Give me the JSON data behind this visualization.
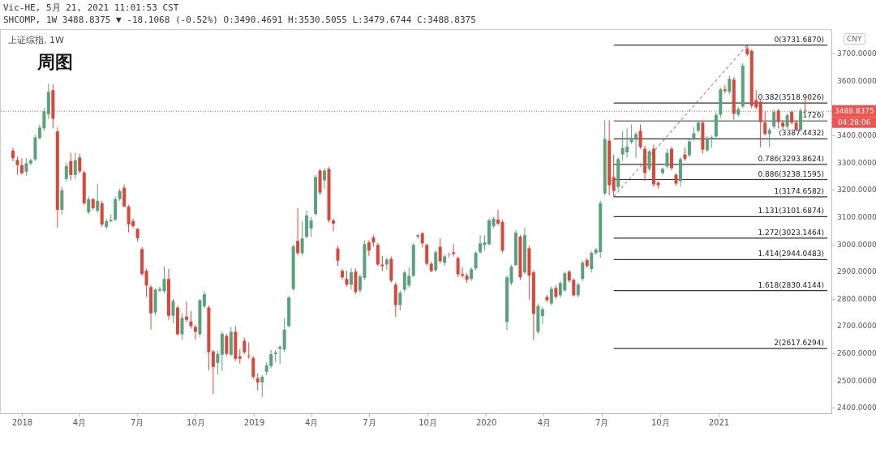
{
  "chart_data": {
    "type": "candlestick",
    "title": "周图",
    "subtitle": "上证综指, 1W",
    "annotations": [
      "Vic-HE, 5月 21, 2021 11:01:53 CST",
      "SHCOMP, 1W 3488.8375 ▼ -18.1068 (-0.52%) O:3490.4691 H:3530.5055 L:3479.6744 C:3488.8375",
      "CNY",
      "04:28:06"
    ],
    "colors": [
      "#d9473b",
      "#d9473b",
      "#d9473b",
      "#5aa17f",
      "#5aa17f",
      "#5aa17f",
      "#5aa17f",
      "#5aa17f",
      "#5aa17f",
      "#d9473b",
      "#d9473b",
      "#5aa17f",
      "#5aa17f",
      "#d9473b",
      "#5aa17f",
      "#d9473b",
      "#d9473b",
      "#5aa17f",
      "#d9473b",
      "#5aa17f",
      "#d9473b",
      "#5aa17f",
      "#5aa17f",
      "#5aa17f",
      "#5aa17f",
      "#d9473b",
      "#d9473b",
      "#d9473b",
      "#d9473b",
      "#d9473b",
      "#d9473b",
      "#d9473b",
      "#5aa17f",
      "#5aa17f",
      "#5aa17f",
      "#d9473b",
      "#5aa17f",
      "#d9473b",
      "#5aa17f",
      "#d9473b",
      "#d9473b",
      "#d9473b",
      "#5aa17f",
      "#5aa17f",
      "#d9473b",
      "#d9473b",
      "#5aa17f",
      "#5aa17f",
      "#d9473b",
      "#5aa17f",
      "#d9473b",
      "#d9473b",
      "#d9473b",
      "#d9473b",
      "#d9473b",
      "#d9473b",
      "#5aa17f",
      "#5aa17f",
      "#5aa17f",
      "#5aa17f",
      "#5aa17f",
      "#5aa17f",
      "#5aa17f",
      "#5aa17f",
      "#d9473b",
      "#5aa17f",
      "#5aa17f",
      "#5aa17f",
      "#5aa17f",
      "#d9473b",
      "#5aa17f",
      "#d9473b",
      "#d9473b",
      "#d9473b",
      "#d9473b",
      "#d9473b",
      "#5aa17f",
      "#d9473b",
      "#5aa17f",
      "#5aa17f",
      "#d9473b",
      "#d9473b",
      "#d9473b",
      "#d9473b",
      "#5aa17f",
      "#d9473b",
      "#d9473b",
      "#5aa17f",
      "#5aa17f",
      "#5aa17f",
      "#5aa17f",
      "#5aa17f",
      "#d9473b",
      "#d9473b",
      "#d9473b",
      "#5aa17f",
      "#d9473b",
      "#5aa17f",
      "#5aa17f",
      "#d9473b",
      "#d9473b",
      "#d9473b",
      "#d9473b",
      "#5aa17f",
      "#5aa17f",
      "#5aa17f",
      "#5aa17f",
      "#5aa17f",
      "#5aa17f",
      "#d9473b",
      "#d9473b",
      "#5aa17f",
      "#5aa17f",
      "#5aa17f",
      "#d9473b",
      "#5aa17f",
      "#d9473b",
      "#d9473b",
      "#5aa17f",
      "#5aa17f",
      "#d9473b",
      "#5aa17f",
      "#d9473b",
      "#5aa17f",
      "#5aa17f",
      "#d9473b",
      "#d9473b",
      "#5aa17f",
      "#5aa17f",
      "#d9473b",
      "#5aa17f",
      "#5aa17f",
      "#5aa17f",
      "#5aa17f",
      "#d9473b",
      "#d9473b",
      "#5aa17f",
      "#5aa17f",
      "#5aa17f",
      "#5aa17f",
      "#5aa17f",
      "#d9473b",
      "#d9473b",
      "#5aa17f",
      "#d9473b",
      "#d9473b",
      "#5aa17f",
      "#5aa17f",
      "#d9473b",
      "#d9473b",
      "#5aa17f",
      "#d9473b",
      "#5aa17f",
      "#5aa17f",
      "#5aa17f",
      "#d9473b",
      "#5aa17f",
      "#5aa17f",
      "#5aa17f",
      "#5aa17f",
      "#d9473b",
      "#5aa17f",
      "#d9473b",
      "#5aa17f",
      "#5aa17f",
      "#d9473b",
      "#d9473b",
      "#d9473b",
      "#d9473b",
      "#d9473b",
      "#5aa17f",
      "#5aa17f",
      "#d9473b",
      "#d9473b",
      "#5aa17f",
      "#d9473b",
      "#d9473b",
      "#5aa17f",
      "#d9473b"
    ],
    "xlim": [
      "2017-12-04",
      "2021-06-21"
    ],
    "xticks": [
      {
        "value": "2018-01-01",
        "label": "2018"
      },
      {
        "value": "2018-04-01",
        "label": "4月"
      },
      {
        "value": "2018-07-01",
        "label": "7月"
      },
      {
        "value": "2018-10-01",
        "label": "10月"
      },
      {
        "value": "2019-01-01",
        "label": "2019"
      },
      {
        "value": "2019-04-01",
        "label": "4月"
      },
      {
        "value": "2019-07-01",
        "label": "7月"
      },
      {
        "value": "2019-10-01",
        "label": "10月"
      },
      {
        "value": "2020-01-01",
        "label": "2020"
      },
      {
        "value": "2020-04-01",
        "label": "4月"
      },
      {
        "value": "2020-07-01",
        "label": "7月"
      },
      {
        "value": "2020-10-01",
        "label": "10月"
      },
      {
        "value": "2021-01-01",
        "label": "2021"
      }
    ],
    "ylim": [
      2380,
      3790
    ],
    "yticks": [
      {
        "value": 2400,
        "label": "2400.0000"
      },
      {
        "value": 2500,
        "label": "2500.0000"
      },
      {
        "value": 2600,
        "label": "2600.0000"
      },
      {
        "value": 2700,
        "label": "2700.0000"
      },
      {
        "value": 2800,
        "label": "2800.0000"
      },
      {
        "value": 2900,
        "label": "2900.0000"
      },
      {
        "value": 3000,
        "label": "3000.0000"
      },
      {
        "value": 3100,
        "label": "3100.0000"
      },
      {
        "value": 3200,
        "label": "3200.0000"
      },
      {
        "value": 3300,
        "label": "3300.0000"
      },
      {
        "value": 3400,
        "label": "3400.0000"
      },
      {
        "value": 3600,
        "label": "3600.0000"
      },
      {
        "value": 3700,
        "label": "3700.0000"
      }
    ],
    "ref_lines": [
      {
        "axis": "y",
        "value": 3488.8375,
        "label": "3488.8375",
        "color": "#ef5350",
        "line_style": "dotted"
      }
    ],
    "x": [
      "2017-12-18",
      "2017-12-25",
      "2018-01-01",
      "2018-01-08",
      "2018-01-15",
      "2018-01-22",
      "2018-01-29",
      "2018-02-05",
      "2018-02-12",
      "2018-02-19",
      "2018-02-26",
      "2018-03-05",
      "2018-03-12",
      "2018-03-19",
      "2018-03-26",
      "2018-04-02",
      "2018-04-09",
      "2018-04-16",
      "2018-04-23",
      "2018-04-30",
      "2018-05-07",
      "2018-05-14",
      "2018-05-21",
      "2018-05-28",
      "2018-06-04",
      "2018-06-11",
      "2018-06-18",
      "2018-06-25",
      "2018-07-02",
      "2018-07-09",
      "2018-07-16",
      "2018-07-23",
      "2018-07-30",
      "2018-08-06",
      "2018-08-13",
      "2018-08-20",
      "2018-08-27",
      "2018-09-03",
      "2018-09-10",
      "2018-09-17",
      "2018-09-24",
      "2018-10-01",
      "2018-10-08",
      "2018-10-15",
      "2018-10-22",
      "2018-10-29",
      "2018-11-05",
      "2018-11-12",
      "2018-11-19",
      "2018-11-26",
      "2018-12-03",
      "2018-12-10",
      "2018-12-17",
      "2018-12-24",
      "2018-12-31",
      "2019-01-07",
      "2019-01-14",
      "2019-01-21",
      "2019-01-28",
      "2019-02-04",
      "2019-02-11",
      "2019-02-18",
      "2019-02-25",
      "2019-03-04",
      "2019-03-11",
      "2019-03-18",
      "2019-03-25",
      "2019-04-01",
      "2019-04-08",
      "2019-04-15",
      "2019-04-22",
      "2019-04-29",
      "2019-05-06",
      "2019-05-13",
      "2019-05-20",
      "2019-05-27",
      "2019-06-03",
      "2019-06-10",
      "2019-06-17",
      "2019-06-24",
      "2019-07-01",
      "2019-07-08",
      "2019-07-15",
      "2019-07-22",
      "2019-07-29",
      "2019-08-05",
      "2019-08-12",
      "2019-08-19",
      "2019-08-26",
      "2019-09-02",
      "2019-09-09",
      "2019-09-16",
      "2019-09-23",
      "2019-09-30",
      "2019-10-07",
      "2019-10-14",
      "2019-10-21",
      "2019-10-28",
      "2019-11-04",
      "2019-11-11",
      "2019-11-18",
      "2019-11-25",
      "2019-12-02",
      "2019-12-09",
      "2019-12-16",
      "2019-12-23",
      "2019-12-30",
      "2020-01-06",
      "2020-01-13",
      "2020-01-20",
      "2020-01-27",
      "2020-02-03",
      "2020-02-10",
      "2020-02-17",
      "2020-02-24",
      "2020-03-02",
      "2020-03-09",
      "2020-03-16",
      "2020-03-23",
      "2020-03-30",
      "2020-04-06",
      "2020-04-13",
      "2020-04-20",
      "2020-04-27",
      "2020-05-04",
      "2020-05-11",
      "2020-05-18",
      "2020-05-25",
      "2020-06-01",
      "2020-06-08",
      "2020-06-15",
      "2020-06-22",
      "2020-06-29",
      "2020-07-06",
      "2020-07-13",
      "2020-07-20",
      "2020-07-27",
      "2020-08-03",
      "2020-08-10",
      "2020-08-17",
      "2020-08-24",
      "2020-08-31",
      "2020-09-07",
      "2020-09-14",
      "2020-09-21",
      "2020-09-28",
      "2020-10-05",
      "2020-10-12",
      "2020-10-19",
      "2020-10-26",
      "2020-11-02",
      "2020-11-09",
      "2020-11-16",
      "2020-11-23",
      "2020-11-30",
      "2020-12-07",
      "2020-12-14",
      "2020-12-21",
      "2020-12-28",
      "2021-01-04",
      "2021-01-11",
      "2021-01-18",
      "2021-01-25",
      "2021-02-01",
      "2021-02-08",
      "2021-02-15",
      "2021-02-22",
      "2021-03-01",
      "2021-03-08",
      "2021-03-15",
      "2021-03-22",
      "2021-03-29",
      "2021-04-05",
      "2021-04-12",
      "2021-04-19",
      "2021-04-26",
      "2021-05-03",
      "2021-05-10",
      "2021-05-17"
    ],
    "ohlc": [
      [
        3344,
        3355,
        3305,
        3316
      ],
      [
        3310,
        3321,
        3256,
        3291
      ],
      [
        3291,
        3316,
        3256,
        3261
      ],
      [
        3267,
        3316,
        3252,
        3298
      ],
      [
        3297,
        3315,
        3290,
        3309
      ],
      [
        3312,
        3402,
        3305,
        3393
      ],
      [
        3390,
        3440,
        3385,
        3429
      ],
      [
        3426,
        3500,
        3415,
        3488
      ],
      [
        3477,
        3590,
        3460,
        3560
      ],
      [
        3566,
        3587,
        3426,
        3461
      ],
      [
        3415,
        3430,
        3062,
        3127
      ],
      [
        3127,
        3211,
        3110,
        3199
      ],
      [
        3240,
        3300,
        3230,
        3288
      ],
      [
        3306,
        3336,
        3235,
        3255
      ],
      [
        3255,
        3336,
        3240,
        3309
      ],
      [
        3319,
        3333,
        3260,
        3268
      ],
      [
        3264,
        3270,
        3145,
        3151
      ],
      [
        3118,
        3175,
        3110,
        3166
      ],
      [
        3166,
        3170,
        3125,
        3133
      ],
      [
        3124,
        3222,
        3115,
        3160
      ],
      [
        3151,
        3160,
        3065,
        3073
      ],
      [
        3064,
        3095,
        3055,
        3085
      ],
      [
        3085,
        3110,
        3080,
        3090
      ],
      [
        3091,
        3175,
        3085,
        3166
      ],
      [
        3166,
        3205,
        3160,
        3196
      ],
      [
        3208,
        3220,
        3135,
        3139
      ],
      [
        3139,
        3145,
        3043,
        3073
      ],
      [
        3085,
        3095,
        3060,
        3067
      ],
      [
        3057,
        3060,
        3010,
        3022
      ],
      [
        2983,
        2990,
        2885,
        2891
      ],
      [
        2903,
        2910,
        2807,
        2849
      ],
      [
        2843,
        2850,
        2687,
        2747
      ],
      [
        2750,
        2840,
        2740,
        2834
      ],
      [
        2830,
        2845,
        2825,
        2836
      ],
      [
        2828,
        2918,
        2820,
        2873
      ],
      [
        2873,
        2910,
        2723,
        2738
      ],
      [
        2738,
        2800,
        2710,
        2792
      ],
      [
        2768,
        2775,
        2665,
        2670
      ],
      [
        2670,
        2748,
        2650,
        2730
      ],
      [
        2735,
        2790,
        2715,
        2723
      ],
      [
        2717,
        2755,
        2690,
        2700
      ],
      [
        2697,
        2705,
        2650,
        2679
      ],
      [
        2670,
        2800,
        2660,
        2795
      ],
      [
        2772,
        2828,
        2765,
        2817
      ],
      [
        2768,
        2775,
        2538,
        2604
      ],
      [
        2607,
        2612,
        2450,
        2550
      ],
      [
        2565,
        2610,
        2523,
        2598
      ],
      [
        2595,
        2680,
        2535,
        2672
      ],
      [
        2664,
        2672,
        2590,
        2598
      ],
      [
        2595,
        2697,
        2590,
        2679
      ],
      [
        2679,
        2700,
        2572,
        2580
      ],
      [
        2589,
        2615,
        2562,
        2580
      ],
      [
        2646,
        2658,
        2597,
        2604
      ],
      [
        2592,
        2640,
        2580,
        2589
      ],
      [
        2583,
        2590,
        2505,
        2514
      ],
      [
        2508,
        2526,
        2463,
        2493
      ],
      [
        2493,
        2520,
        2440,
        2514
      ],
      [
        2532,
        2567,
        2520,
        2556
      ],
      [
        2553,
        2612,
        2545,
        2597
      ],
      [
        2597,
        2612,
        2567,
        2603
      ],
      [
        2617,
        2630,
        2561,
        2624
      ],
      [
        2614,
        2729,
        2605,
        2687
      ],
      [
        2700,
        2810,
        2695,
        2805
      ],
      [
        2836,
        3000,
        2830,
        2993
      ],
      [
        3013,
        3133,
        2960,
        2968
      ],
      [
        2968,
        3085,
        2960,
        3022
      ],
      [
        3028,
        3124,
        3022,
        3106
      ],
      [
        3058,
        3100,
        3027,
        3088
      ],
      [
        3112,
        3255,
        3105,
        3247
      ],
      [
        3271,
        3277,
        3180,
        3190
      ],
      [
        3235,
        3280,
        3205,
        3271
      ],
      [
        3277,
        3285,
        3080,
        3088
      ],
      [
        3088,
        3095,
        3048,
        3076
      ],
      [
        2985,
        2995,
        2920,
        2940
      ],
      [
        2903,
        2910,
        2870,
        2879
      ],
      [
        2873,
        2903,
        2845,
        2852
      ],
      [
        2852,
        2912,
        2834,
        2897
      ],
      [
        2900,
        2912,
        2818,
        2825
      ],
      [
        2831,
        2890,
        2822,
        2882
      ],
      [
        2877,
        3013,
        2870,
        3001
      ],
      [
        3007,
        3016,
        2957,
        2977
      ],
      [
        3025,
        3034,
        2991,
        3007
      ],
      [
        2998,
        3005,
        2920,
        2926
      ],
      [
        2926,
        2957,
        2902,
        2920
      ],
      [
        2926,
        2950,
        2907,
        2944
      ],
      [
        2947,
        2955,
        2860,
        2866
      ],
      [
        2852,
        2860,
        2733,
        2777
      ],
      [
        2777,
        2830,
        2757,
        2822
      ],
      [
        2834,
        2905,
        2825,
        2897
      ],
      [
        2849,
        2915,
        2840,
        2885
      ],
      [
        2885,
        3005,
        2880,
        2998
      ],
      [
        3028,
        3040,
        3019,
        3034
      ],
      [
        3040,
        3046,
        2988,
        3004
      ],
      [
        2998,
        3003,
        2922,
        2929
      ],
      [
        2929,
        2935,
        2898,
        2902
      ],
      [
        2905,
        2980,
        2900,
        2971
      ],
      [
        2991,
        3022,
        2930,
        2938
      ],
      [
        2932,
        2962,
        2920,
        2956
      ],
      [
        2960,
        2970,
        2950,
        2962
      ],
      [
        2971,
        3001,
        2955,
        2965
      ],
      [
        2950,
        2955,
        2880,
        2890
      ],
      [
        2891,
        2915,
        2878,
        2885
      ],
      [
        2885,
        2895,
        2858,
        2870
      ],
      [
        2873,
        2915,
        2865,
        2909
      ],
      [
        2912,
        2975,
        2905,
        2969
      ],
      [
        2971,
        3034,
        2965,
        3004
      ],
      [
        2998,
        3034,
        2977,
        3007
      ],
      [
        3001,
        3095,
        2995,
        3088
      ],
      [
        3067,
        3100,
        3060,
        3094
      ],
      [
        3091,
        3127,
        3070,
        3076
      ],
      [
        3082,
        3090,
        2970,
        2977
      ],
      [
        2715,
        2885,
        2685,
        2879
      ],
      [
        2858,
        2925,
        2850,
        2918
      ],
      [
        2924,
        3052,
        2920,
        3043
      ],
      [
        3028,
        3035,
        2870,
        2879
      ],
      [
        2897,
        3061,
        2890,
        3034
      ],
      [
        2986,
        2995,
        2798,
        2885
      ],
      [
        2897,
        2905,
        2649,
        2745
      ],
      [
        2679,
        2783,
        2670,
        2774
      ],
      [
        2737,
        2770,
        2708,
        2762
      ],
      [
        2807,
        2815,
        2788,
        2795
      ],
      [
        2783,
        2845,
        2775,
        2837
      ],
      [
        2840,
        2850,
        2800,
        2807
      ],
      [
        2813,
        2865,
        2805,
        2858
      ],
      [
        2831,
        2900,
        2825,
        2894
      ],
      [
        2900,
        2906,
        2860,
        2867
      ],
      [
        2870,
        2875,
        2808,
        2813
      ],
      [
        2813,
        2860,
        2805,
        2852
      ],
      [
        2873,
        2940,
        2865,
        2933
      ],
      [
        2942,
        2950,
        2913,
        2920
      ],
      [
        2909,
        2975,
        2896,
        2969
      ],
      [
        2968,
        2987,
        2962,
        2981
      ],
      [
        2972,
        3160,
        2950,
        3151
      ],
      [
        3187,
        3456,
        3180,
        3387
      ],
      [
        3381,
        3456,
        3180,
        3217
      ],
      [
        3247,
        3330,
        3174.6582,
        3196
      ],
      [
        3211,
        3320,
        3200,
        3313
      ],
      [
        3330,
        3415,
        3306,
        3354
      ],
      [
        3338,
        3425,
        3318,
        3359
      ],
      [
        3375,
        3440,
        3370,
        3384
      ],
      [
        3390,
        3412,
        3318,
        3405
      ],
      [
        3417,
        3440,
        3350,
        3357
      ],
      [
        3351,
        3362,
        3232,
        3262
      ],
      [
        3277,
        3348,
        3270,
        3342
      ],
      [
        3351,
        3366,
        3211,
        3220
      ],
      [
        3226,
        3232,
        3205,
        3217
      ],
      [
        3262,
        3283,
        3255,
        3277
      ],
      [
        3286,
        3351,
        3278,
        3336
      ],
      [
        3351,
        3358,
        3272,
        3280
      ],
      [
        3256,
        3262,
        3215,
        3223
      ],
      [
        3232,
        3320,
        3212,
        3313
      ],
      [
        3330,
        3356,
        3306,
        3313
      ],
      [
        3327,
        3385,
        3320,
        3378
      ],
      [
        3387,
        3430,
        3380,
        3408
      ],
      [
        3417,
        3455,
        3410,
        3447
      ],
      [
        3447,
        3455,
        3333,
        3348
      ],
      [
        3345,
        3398,
        3340,
        3390
      ],
      [
        3390,
        3400,
        3354,
        3393
      ],
      [
        3396,
        3485,
        3387,
        3476
      ],
      [
        3476,
        3575,
        3464,
        3569
      ],
      [
        3569,
        3585,
        3555,
        3563
      ],
      [
        3560,
        3620,
        3550,
        3608
      ],
      [
        3605,
        3614,
        3458,
        3479
      ],
      [
        3476,
        3505,
        3470,
        3497
      ],
      [
        3506,
        3665,
        3500,
        3656
      ],
      [
        3719,
        3731.687,
        3690,
        3698
      ],
      [
        3710,
        3716,
        3500,
        3509
      ],
      [
        3530,
        3566,
        3495,
        3503
      ],
      [
        3524,
        3530,
        3357,
        3449
      ],
      [
        3447,
        3488,
        3400,
        3405
      ],
      [
        3405,
        3428,
        3357,
        3420
      ],
      [
        3432,
        3495,
        3425,
        3486
      ],
      [
        3491,
        3497,
        3426,
        3449
      ],
      [
        3447,
        3455,
        3420,
        3432
      ],
      [
        3432,
        3480,
        3425,
        3474
      ],
      [
        3486,
        3492,
        3440,
        3447
      ],
      [
        3447,
        3455,
        3415,
        3420
      ],
      [
        3420,
        3500,
        3413,
        3491
      ],
      [
        3490.4691,
        3530.5055,
        3479.6744,
        3488.8375
      ]
    ],
    "series": [
      {
        "type": "line",
        "x": [
          "2020-07-20",
          "2021-02-15"
        ],
        "values": [
          3174.6582,
          3731.687
        ],
        "color": "#9e9e9e",
        "line_style": "dashed"
      },
      {
        "type": "line",
        "name": "0(3731.6870)",
        "x": [
          "2020-07-20",
          "2021-06-21"
        ],
        "values": [
          3731.687,
          3731.687
        ],
        "color": "#333333",
        "line_style": "solid"
      },
      {
        "type": "line",
        "name": "0.382(3518.9026)",
        "x": [
          "2020-07-20",
          "2021-06-21"
        ],
        "values": [
          3518.9026,
          3518.9026
        ],
        "color": "#333333",
        "line_style": "solid"
      },
      {
        "type": "line",
        "name": "1726)",
        "x": [
          "2020-07-20",
          "2021-06-21"
        ],
        "values": [
          3453.1726,
          3453.1726
        ],
        "color": "#333333",
        "line_style": "solid"
      },
      {
        "type": "line",
        "name": "(3387.4432)",
        "x": [
          "2020-07-20",
          "2021-06-21"
        ],
        "values": [
          3387.4432,
          3387.4432
        ],
        "color": "#333333",
        "line_style": "solid"
      },
      {
        "type": "line",
        "name": "0.786(3293.8624)",
        "x": [
          "2020-07-20",
          "2021-06-21"
        ],
        "values": [
          3293.8624,
          3293.8624
        ],
        "color": "#333333",
        "line_style": "solid"
      },
      {
        "type": "line",
        "name": "0.886(3238.1595)",
        "x": [
          "2020-07-20",
          "2021-06-21"
        ],
        "values": [
          3238.1595,
          3238.1595
        ],
        "color": "#333333",
        "line_style": "solid"
      },
      {
        "type": "line",
        "name": "1(3174.6582)",
        "x": [
          "2020-07-20",
          "2021-06-21"
        ],
        "values": [
          3174.6582,
          3174.6582
        ],
        "color": "#333333",
        "line_style": "solid"
      },
      {
        "type": "line",
        "name": "1.131(3101.6874)",
        "x": [
          "2020-07-20",
          "2021-06-21"
        ],
        "values": [
          3101.6874,
          3101.6874
        ],
        "color": "#333333",
        "line_style": "solid"
      },
      {
        "type": "line",
        "name": "1.272(3023.1464)",
        "x": [
          "2020-07-20",
          "2021-06-21"
        ],
        "values": [
          3023.1464,
          3023.1464
        ],
        "color": "#333333",
        "line_style": "solid"
      },
      {
        "type": "line",
        "name": "1.414(2944.0483)",
        "x": [
          "2020-07-20",
          "2021-06-21"
        ],
        "values": [
          2944.0483,
          2944.0483
        ],
        "color": "#333333",
        "line_style": "solid"
      },
      {
        "type": "line",
        "name": "1.618(2830.4144)",
        "x": [
          "2020-07-20",
          "2021-06-21"
        ],
        "values": [
          2830.4144,
          2830.4144
        ],
        "color": "#333333",
        "line_style": "solid"
      },
      {
        "type": "line",
        "name": "2(2617.6294)",
        "x": [
          "2020-07-20",
          "2021-06-21"
        ],
        "values": [
          2617.6294,
          2617.6294
        ],
        "color": "#333333",
        "line_style": "solid"
      }
    ]
  }
}
